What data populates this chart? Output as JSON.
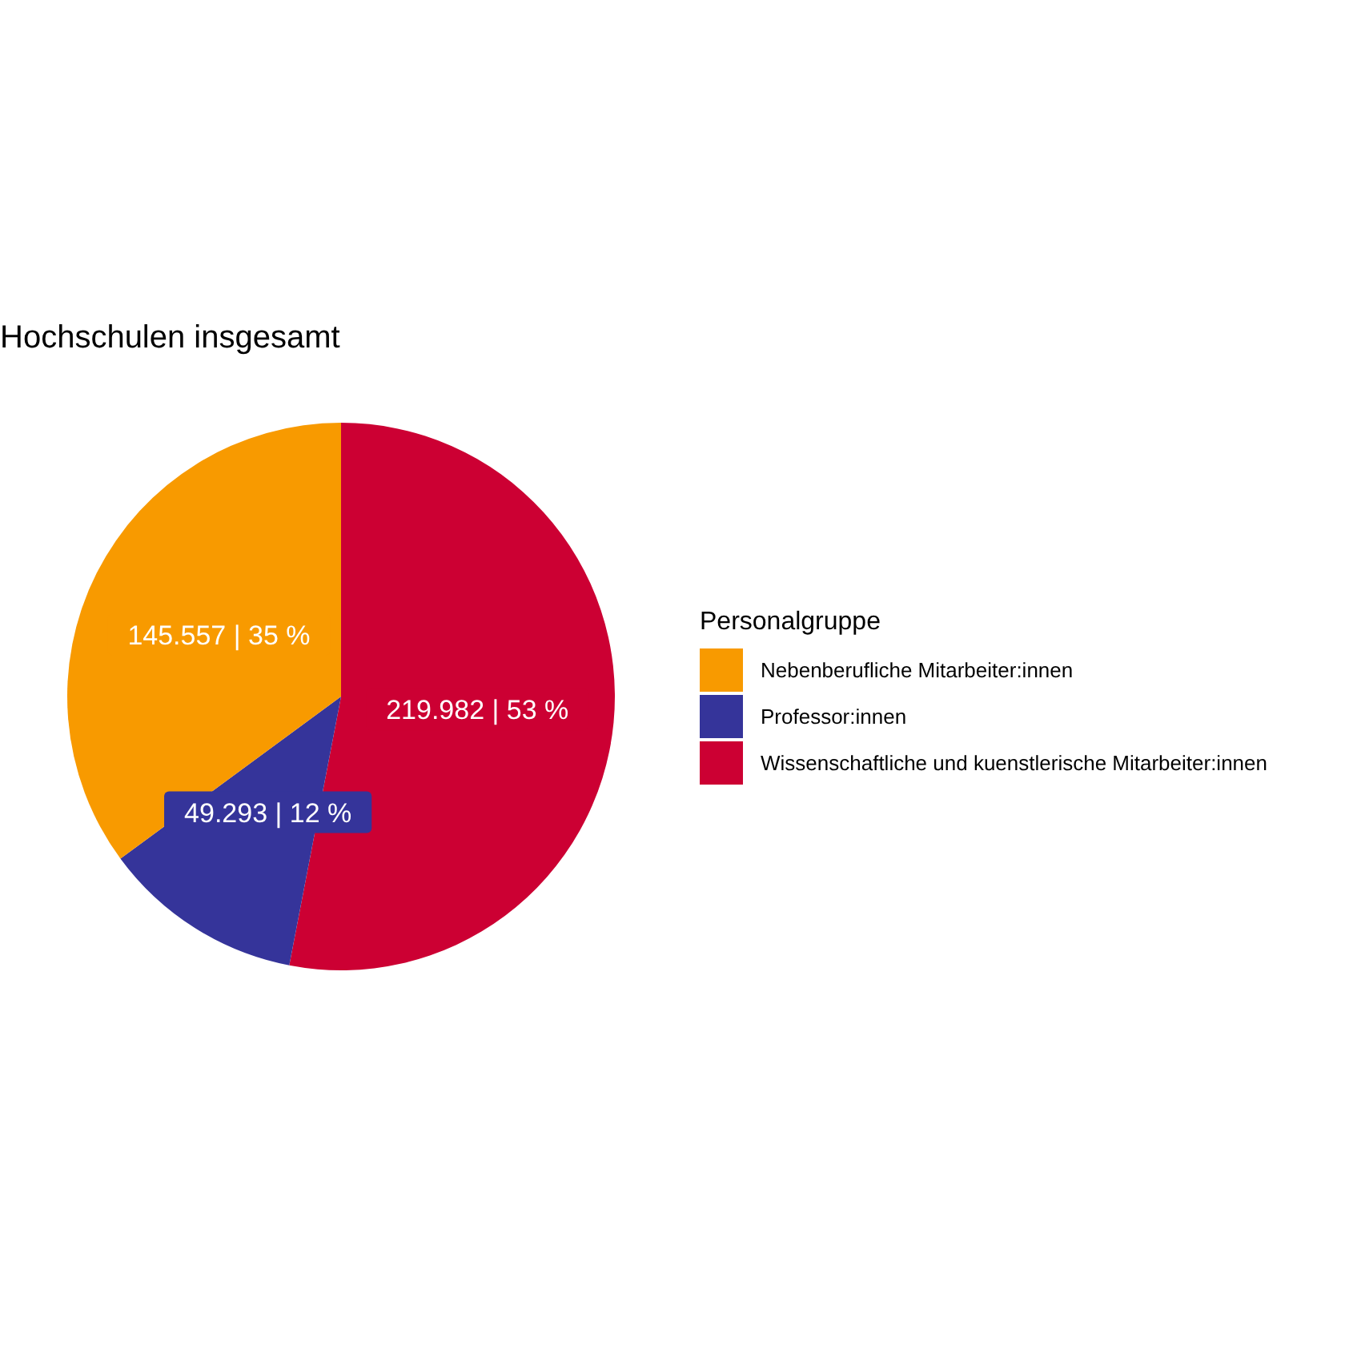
{
  "chart_data": {
    "type": "pie",
    "title": "Hochschulen insgesamt",
    "legend_title": "Personalgruppe",
    "categories": [
      "Nebenberufliche Mitarbeiter:innen",
      "Professor:innen",
      "Wissenschaftliche und kuenstlerische Mitarbeiter:innen"
    ],
    "values": [
      145557,
      49293,
      219982
    ],
    "value_labels": [
      "145.557 | 35 %",
      "49.293 | 12 %",
      "219.982 | 53 %"
    ],
    "colors": [
      "#f89a00",
      "#35349a",
      "#cc0033"
    ],
    "legend": "right"
  }
}
